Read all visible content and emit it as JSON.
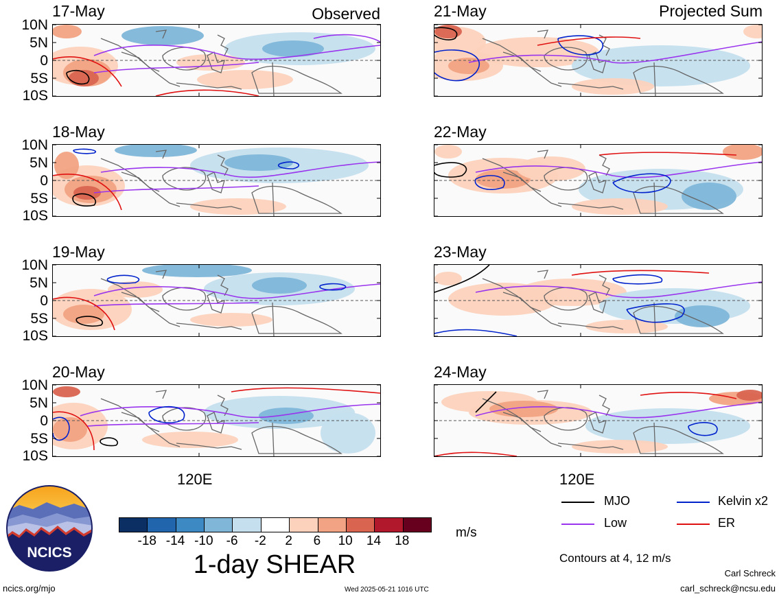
{
  "panel_titles": {
    "left": "Observed",
    "right": "Projected Sum"
  },
  "lat_labels": [
    "10N",
    "5N",
    "0",
    "5S",
    "10S"
  ],
  "lon_label": "120E",
  "panels": [
    {
      "date": "17-May"
    },
    {
      "date": "18-May"
    },
    {
      "date": "19-May"
    },
    {
      "date": "20-May"
    },
    {
      "date": "21-May"
    },
    {
      "date": "22-May"
    },
    {
      "date": "23-May"
    },
    {
      "date": "24-May"
    }
  ],
  "colorbar": {
    "ticks": [
      "-18",
      "-14",
      "-10",
      "-6",
      "-2",
      "2",
      "6",
      "10",
      "14",
      "18"
    ],
    "colors": [
      "#0b2e63",
      "#2166ac",
      "#3d89c3",
      "#80b6d8",
      "#c5dfee",
      "#ffffff",
      "#fcd2bc",
      "#f2a383",
      "#d96450",
      "#b2182b",
      "#67001f"
    ],
    "units": "m/s",
    "title": "1-day SHEAR"
  },
  "legend": {
    "items": [
      {
        "label": "MJO",
        "color": "#000000"
      },
      {
        "label": "Kelvin x2",
        "color": "#0022cc"
      },
      {
        "label": "Low",
        "color": "#9933ee"
      },
      {
        "label": "ER",
        "color": "#e01010"
      }
    ],
    "contours_note": "Contours at 4, 12 m/s"
  },
  "logo": {
    "text": "NCICS"
  },
  "footer": {
    "url": "ncics.org/mjo",
    "timestamp": "Wed 2025-05-21 1016 UTC",
    "author": "Carl Schreck",
    "email": "carl_schreck@ncsu.edu"
  }
}
